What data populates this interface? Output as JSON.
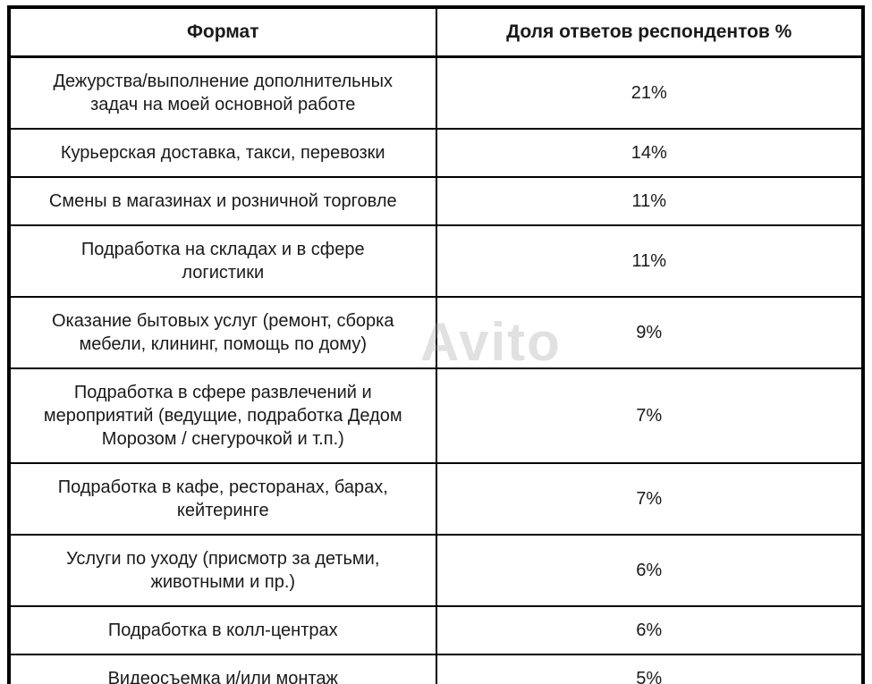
{
  "chart_data": {
    "type": "table",
    "title": "",
    "columns": [
      "Формат",
      "Доля ответов респондентов %"
    ],
    "rows": [
      {
        "format": "Дежурства/выполнение дополнительных задач на моей основной работе",
        "share": "21%"
      },
      {
        "format": "Курьерская доставка, такси, перевозки",
        "share": "14%"
      },
      {
        "format": "Смены в магазинах и розничной торговле",
        "share": "11%"
      },
      {
        "format": "Подработка на складах и в сфере логистики",
        "share": "11%"
      },
      {
        "format": "Оказание бытовых услуг (ремонт, сборка мебели, клининг, помощь по дому)",
        "share": "9%"
      },
      {
        "format": "Подработка в сфере развлечений и мероприятий (ведущие, подработка Дедом Морозом / снегурочкой и т.п.)",
        "share": "7%"
      },
      {
        "format": "Подработка в кафе, ресторанах, барах, кейтеринге",
        "share": "7%"
      },
      {
        "format": "Услуги по уходу (присмотр за детьми, животными и пр.)",
        "share": "6%"
      },
      {
        "format": "Подработка в колл-центрах",
        "share": "6%"
      },
      {
        "format": "Видеосъемка и/или монтаж",
        "share": "5%"
      }
    ],
    "values": [
      21,
      14,
      11,
      11,
      9,
      7,
      7,
      6,
      6,
      5
    ],
    "ylabel": "Доля ответов респондентов %"
  },
  "watermark": {
    "text": "Avito"
  },
  "colors": {
    "border": "#000000",
    "text": "#1a1a1a",
    "background": "#ffffff",
    "watermark": "#aaaaaa"
  }
}
